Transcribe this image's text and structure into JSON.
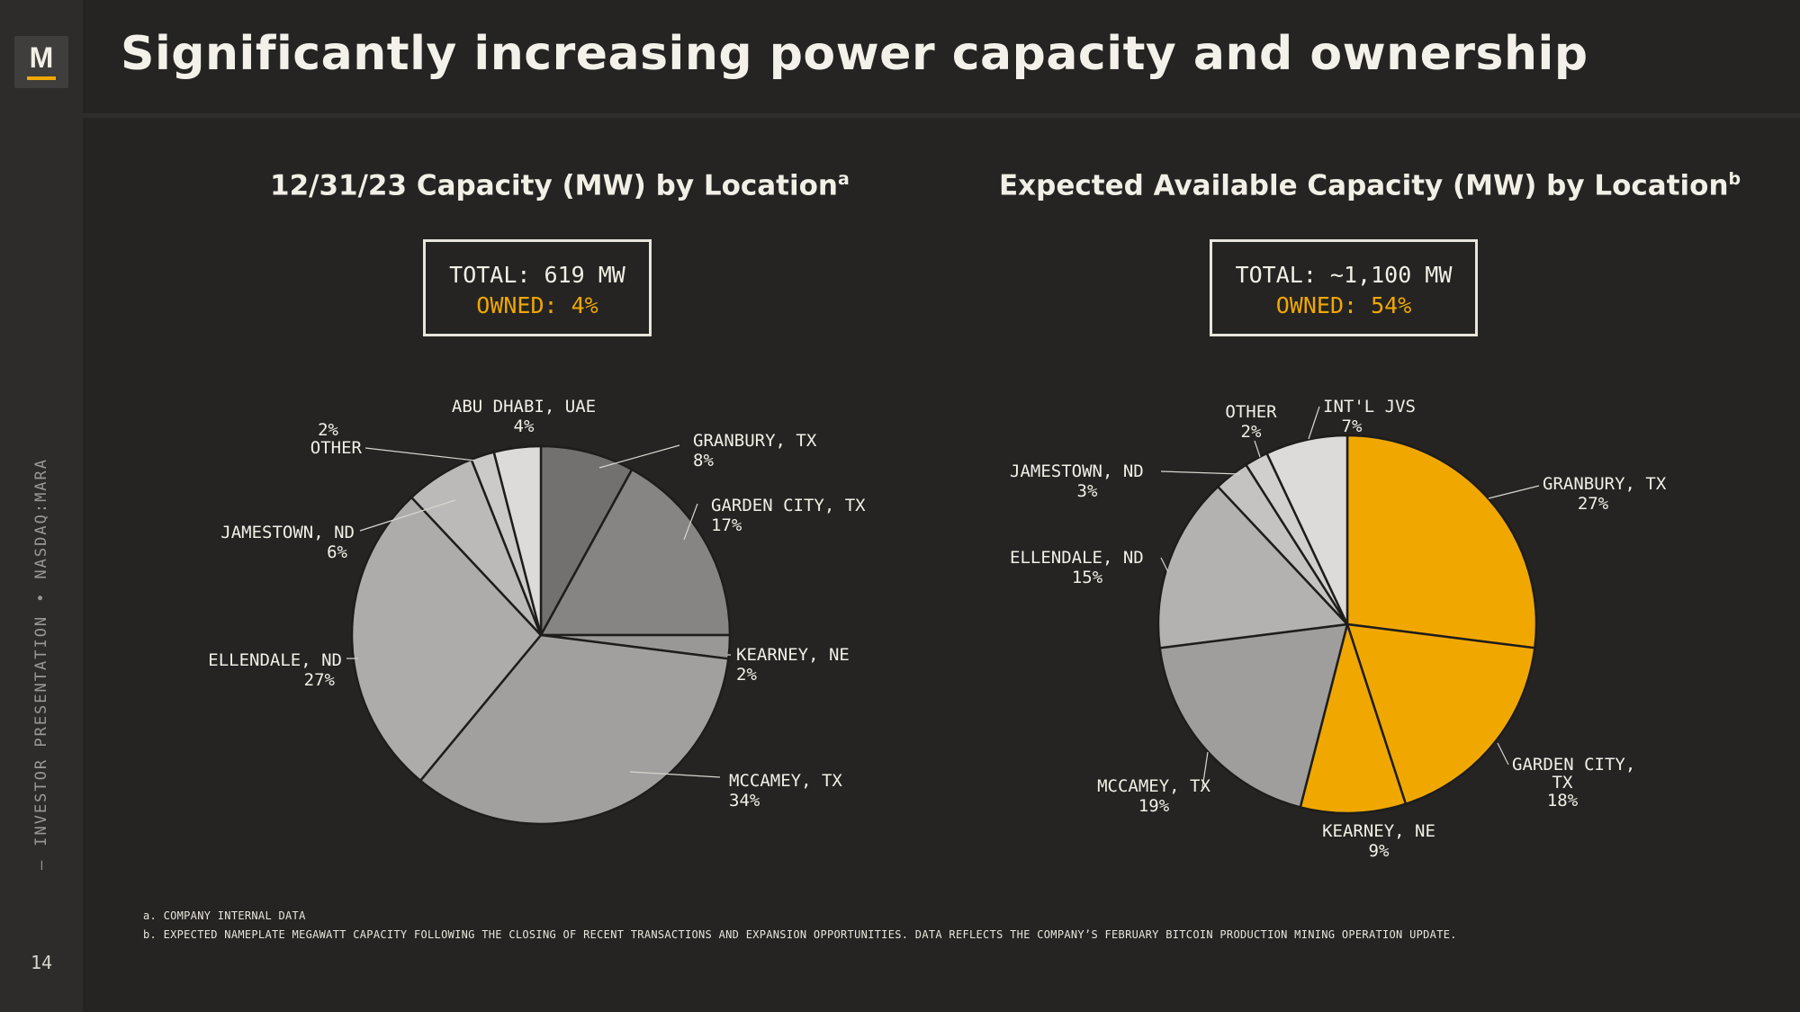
{
  "brand": {
    "logo_letter": "M",
    "accent": "#f0a800"
  },
  "sidebar": {
    "presentation": "INVESTOR PRESENTATION",
    "ticker": "NASDAQ:MARA",
    "separator": "•",
    "page_number": "14",
    "dash": "—"
  },
  "title": "Significantly increasing power capacity and ownership",
  "chart_data": [
    {
      "type": "pie",
      "title": "12/31/23 Capacity (MW) by Location",
      "title_note": "a",
      "total_label": "TOTAL: 619 MW",
      "owned_label": "OWNED: 4%",
      "slices": [
        {
          "label": "GRANBURY, TX",
          "pct_label": "8%",
          "value": 8,
          "color": "#727170"
        },
        {
          "label": "GARDEN CITY, TX",
          "pct_label": "17%",
          "value": 17,
          "color": "#868584"
        },
        {
          "label": "KEARNEY, NE",
          "pct_label": "2%",
          "value": 2,
          "color": "#999897"
        },
        {
          "label": "MCCAMEY, TX",
          "pct_label": "34%",
          "value": 34,
          "color": "#a1a09f"
        },
        {
          "label": "ELLENDALE, ND",
          "pct_label": "27%",
          "value": 27,
          "color": "#adacab"
        },
        {
          "label": "JAMESTOWN, ND",
          "pct_label": "6%",
          "value": 6,
          "color": "#bbbab9"
        },
        {
          "label": "OTHER",
          "pct_label": "2%",
          "value": 2,
          "color": "#cbcac9"
        },
        {
          "label": "ABU DHABI, UAE",
          "pct_label": "4%",
          "value": 4,
          "color": "#dcdbda"
        }
      ]
    },
    {
      "type": "pie",
      "title": "Expected Available Capacity (MW) by Location",
      "title_note": "b",
      "total_label": "TOTAL: ~1,100 MW",
      "owned_label": "OWNED: 54%",
      "slices": [
        {
          "label": "GRANBURY, TX",
          "pct_label": "27%",
          "value": 27,
          "color": "#f0a800"
        },
        {
          "label": "GARDEN CITY, TX",
          "pct_label": "18%",
          "value": 18,
          "color": "#f0a800"
        },
        {
          "label": "KEARNEY, NE",
          "pct_label": "9%",
          "value": 9,
          "color": "#f0a800"
        },
        {
          "label": "MCCAMEY, TX",
          "pct_label": "19%",
          "value": 19,
          "color": "#9f9e9d"
        },
        {
          "label": "ELLENDALE, ND",
          "pct_label": "15%",
          "value": 15,
          "color": "#b3b2b1"
        },
        {
          "label": "JAMESTOWN, ND",
          "pct_label": "3%",
          "value": 3,
          "color": "#c4c3c2"
        },
        {
          "label": "OTHER",
          "pct_label": "2%",
          "value": 2,
          "color": "#d0cfce"
        },
        {
          "label": "INT'L JVS",
          "pct_label": "7%",
          "value": 7,
          "color": "#dcdbda"
        }
      ]
    }
  ],
  "footnotes": [
    "a. COMPANY INTERNAL DATA",
    "b. EXPECTED NAMEPLATE MEGAWATT CAPACITY FOLLOWING THE CLOSING OF RECENT TRANSACTIONS AND EXPANSION OPPORTUNITIES. DATA REFLECTS THE COMPANY’S FEBRUARY BITCOIN PRODUCTION MINING OPERATION UPDATE."
  ]
}
